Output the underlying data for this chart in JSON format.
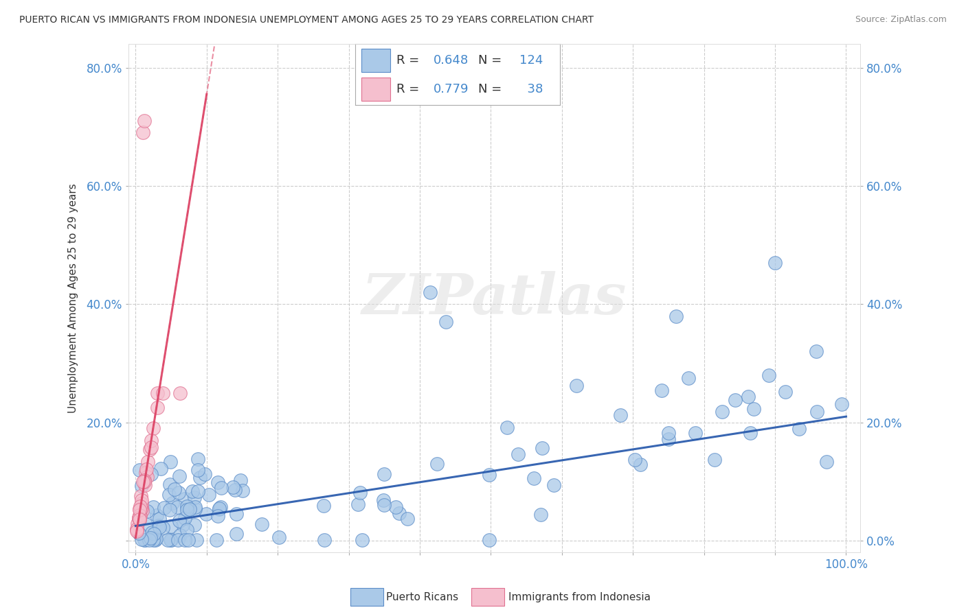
{
  "title": "PUERTO RICAN VS IMMIGRANTS FROM INDONESIA UNEMPLOYMENT AMONG AGES 25 TO 29 YEARS CORRELATION CHART",
  "source": "Source: ZipAtlas.com",
  "ylabel": "Unemployment Among Ages 25 to 29 years",
  "xlim": [
    -0.01,
    1.02
  ],
  "ylim": [
    -0.02,
    0.84
  ],
  "xtick_vals": [
    0.0,
    0.1,
    0.2,
    0.3,
    0.4,
    0.5,
    0.6,
    0.7,
    0.8,
    0.9,
    1.0
  ],
  "ytick_vals": [
    0.0,
    0.2,
    0.4,
    0.6,
    0.8
  ],
  "ytick_labels_left": [
    "",
    "20.0%",
    "40.0%",
    "60.0%",
    "80.0%"
  ],
  "ytick_labels_right": [
    "0.0%",
    "20.0%",
    "40.0%",
    "60.0%",
    "80.0%"
  ],
  "blue_R": 0.648,
  "blue_N": 124,
  "pink_R": 0.779,
  "pink_N": 38,
  "blue_color": "#aac9e8",
  "blue_edge_color": "#5b8cc8",
  "blue_line_color": "#2255aa",
  "pink_color": "#f5bfce",
  "pink_edge_color": "#e07090",
  "pink_line_color": "#dd4466",
  "legend_label_blue": "Puerto Ricans",
  "legend_label_pink": "Immigrants from Indonesia",
  "watermark": "ZIPatlas",
  "background_color": "#ffffff",
  "grid_color": "#cccccc",
  "tick_label_color": "#4488cc",
  "axis_label_color": "#333333",
  "blue_line_slope": 0.185,
  "blue_line_intercept": 0.025,
  "pink_line_slope": 7.5,
  "pink_line_intercept": 0.005,
  "pink_dashed_slope": 7.5,
  "pink_dashed_intercept": 0.005
}
